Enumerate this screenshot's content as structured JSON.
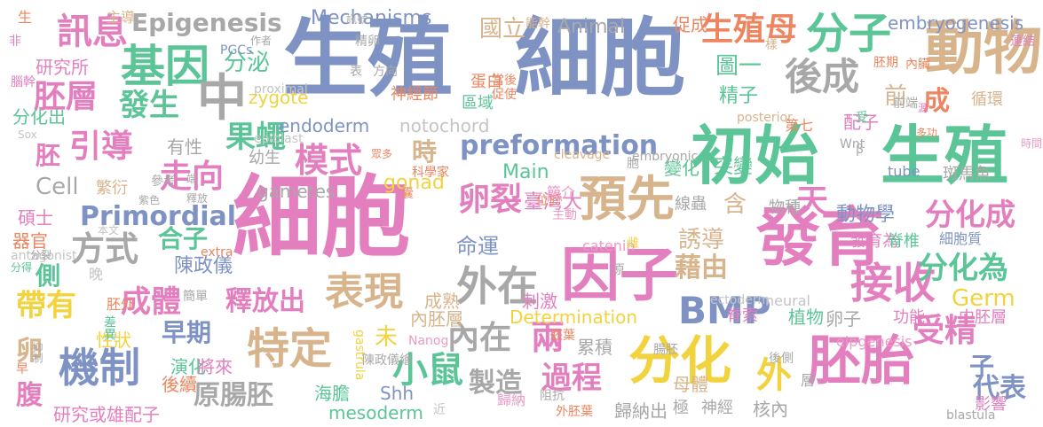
{
  "colors": {
    "blue": "#7e93c4",
    "pink": "#e37fbf",
    "green": "#5cc597",
    "orange": "#ed8660",
    "tan": "#d8b48c",
    "gray": "#a8a8a8",
    "yellow": "#f2d33e",
    "lgreen": "#9fcd4c",
    "palepink": "#ec9ac6",
    "palegray": "#c4c4c4"
  },
  "words": [
    {
      "text": "生殖",
      "color": "blue"
    },
    {
      "text": "細胞",
      "color": "blue"
    },
    {
      "text": "細胞",
      "color": "pink"
    },
    {
      "text": "初始",
      "color": "green"
    },
    {
      "text": "生殖",
      "color": "green"
    },
    {
      "text": "發育",
      "color": "pink"
    },
    {
      "text": "因子",
      "color": "pink"
    },
    {
      "text": "分化",
      "color": "yellow"
    },
    {
      "text": "胚胎",
      "color": "pink"
    },
    {
      "text": "動物",
      "color": "tan"
    },
    {
      "text": "分子",
      "color": "green"
    },
    {
      "text": "基因",
      "color": "green"
    },
    {
      "text": "預先",
      "color": "tan"
    },
    {
      "text": "外在",
      "color": "gray"
    },
    {
      "text": "接收",
      "color": "pink"
    },
    {
      "text": "BMP",
      "color": "blue"
    },
    {
      "text": "機制",
      "color": "blue"
    },
    {
      "text": "特定",
      "color": "tan"
    },
    {
      "text": "表現",
      "color": "tan"
    },
    {
      "text": "訊息",
      "color": "pink"
    },
    {
      "text": "胚層",
      "color": "pink"
    },
    {
      "text": "引導",
      "color": "pink"
    },
    {
      "text": "中",
      "color": "gray"
    },
    {
      "text": "後成",
      "color": "gray"
    },
    {
      "text": "生殖母",
      "color": "orange"
    },
    {
      "text": "Epigenesis",
      "color": "gray"
    },
    {
      "text": "Mechanisms",
      "color": "blue"
    },
    {
      "text": "preformation",
      "color": "blue"
    },
    {
      "text": "模式",
      "color": "pink"
    },
    {
      "text": "果蠅",
      "color": "green"
    },
    {
      "text": "走向",
      "color": "pink"
    },
    {
      "text": "卵裂",
      "color": "pink"
    },
    {
      "text": "天",
      "color": "pink"
    },
    {
      "text": "小鼠",
      "color": "green"
    },
    {
      "text": "原腸胚",
      "color": "gray"
    },
    {
      "text": "過程",
      "color": "pink"
    },
    {
      "text": "內在",
      "color": "gray"
    },
    {
      "text": "兩",
      "color": "pink"
    },
    {
      "text": "外",
      "color": "yellow"
    },
    {
      "text": "受精",
      "color": "pink"
    },
    {
      "text": "分化成",
      "color": "pink"
    },
    {
      "text": "分化為",
      "color": "green"
    },
    {
      "text": "藉由",
      "color": "tan"
    },
    {
      "text": "Germ",
      "color": "yellow"
    },
    {
      "text": "方式",
      "color": "gray"
    },
    {
      "text": "Primordial",
      "color": "blue"
    },
    {
      "text": "成體",
      "color": "pink"
    },
    {
      "text": "發生",
      "color": "green"
    },
    {
      "text": "帶有",
      "color": "yellow"
    },
    {
      "text": "腹",
      "color": "pink"
    },
    {
      "text": "卵",
      "color": "tan"
    },
    {
      "text": "胚",
      "color": "pink"
    },
    {
      "text": "側",
      "color": "green"
    },
    {
      "text": "早期",
      "color": "blue"
    },
    {
      "text": "釋放出",
      "color": "pink"
    },
    {
      "text": "製造",
      "color": "gray"
    },
    {
      "text": "代表",
      "color": "blue"
    },
    {
      "text": "子",
      "color": "blue"
    },
    {
      "text": "成",
      "color": "orange"
    },
    {
      "text": "前",
      "color": "tan"
    },
    {
      "text": "分泌",
      "color": "green"
    },
    {
      "text": "Cell",
      "color": "gray"
    },
    {
      "text": "合子",
      "color": "green"
    },
    {
      "text": "陳政儀",
      "color": "blue"
    },
    {
      "text": "命運",
      "color": "blue"
    },
    {
      "text": "誘導",
      "color": "tan"
    },
    {
      "text": "含",
      "color": "tan"
    },
    {
      "text": "時",
      "color": "tan"
    },
    {
      "text": "未",
      "color": "yellow"
    },
    {
      "text": "圖一",
      "color": "green"
    },
    {
      "text": "精子",
      "color": "green"
    },
    {
      "text": "突變",
      "color": "green"
    },
    {
      "text": "變化",
      "color": "green"
    },
    {
      "text": "國立",
      "color": "tan"
    },
    {
      "text": "臺灣大",
      "color": "pink"
    },
    {
      "text": "動物學",
      "color": "blue"
    },
    {
      "text": "gonad",
      "color": "yellow"
    },
    {
      "text": "Main",
      "color": "green"
    },
    {
      "text": "Animal",
      "color": "gray"
    },
    {
      "text": "zygote",
      "color": "yellow"
    },
    {
      "text": "gametes",
      "color": "gray"
    },
    {
      "text": "endoderm",
      "color": "blue"
    },
    {
      "text": "notochord",
      "color": "palegray"
    },
    {
      "text": "Determination",
      "color": "yellow"
    },
    {
      "text": "embryogenesis",
      "color": "blue"
    },
    {
      "text": "研究所",
      "color": "pink"
    },
    {
      "text": "分化出",
      "color": "green"
    },
    {
      "text": "有性",
      "color": "gray"
    },
    {
      "text": "幼生",
      "color": "gray"
    },
    {
      "text": "繁衍",
      "color": "tan"
    },
    {
      "text": "碩士",
      "color": "pink"
    },
    {
      "text": "器官",
      "color": "orange"
    },
    {
      "text": "性狀",
      "color": "yellow"
    },
    {
      "text": "演化",
      "color": "green"
    },
    {
      "text": "將來",
      "color": "pink"
    },
    {
      "text": "後續",
      "color": "orange"
    },
    {
      "text": "研究或雄配子",
      "color": "pink"
    },
    {
      "text": "mesoderm",
      "color": "green"
    },
    {
      "text": "海膽",
      "color": "green"
    },
    {
      "text": "Shh",
      "color": "blue"
    },
    {
      "text": "刺激",
      "color": "pink"
    },
    {
      "text": "成熟",
      "color": "tan"
    },
    {
      "text": "內胚層",
      "color": "tan"
    },
    {
      "text": "累積",
      "color": "gray"
    },
    {
      "text": "歸納出",
      "color": "gray"
    },
    {
      "text": "極",
      "color": "gray"
    },
    {
      "text": "神經",
      "color": "gray"
    },
    {
      "text": "核內",
      "color": "gray"
    },
    {
      "text": "母體",
      "color": "tan"
    },
    {
      "text": "卵子",
      "color": "gray"
    },
    {
      "text": "植物",
      "color": "green"
    },
    {
      "text": "脊索",
      "color": "pink"
    },
    {
      "text": "功能",
      "color": "pink"
    },
    {
      "text": "中胚層",
      "color": "pink"
    },
    {
      "text": "影響",
      "color": "pink"
    },
    {
      "text": "循環",
      "color": "tan"
    },
    {
      "text": "配子",
      "color": "pink"
    },
    {
      "text": "蛋白",
      "color": "orange"
    },
    {
      "text": "區域",
      "color": "green"
    },
    {
      "text": "神經節",
      "color": "orange"
    },
    {
      "text": "促成",
      "color": "orange"
    },
    {
      "text": "物種",
      "color": "gray"
    },
    {
      "text": "發育為",
      "color": "pink"
    },
    {
      "text": "脊椎",
      "color": "green"
    },
    {
      "text": "細胞質",
      "color": "blue"
    },
    {
      "text": "斑馬魚",
      "color": "gray"
    },
    {
      "text": "catenin",
      "color": "palepink"
    },
    {
      "text": "neural",
      "color": "palegray"
    },
    {
      "text": "blastula",
      "color": "gray"
    },
    {
      "text": "eipgenesis",
      "color": "palepink"
    },
    {
      "text": "tube",
      "color": "blue"
    },
    {
      "text": "proximal",
      "color": "palegray"
    },
    {
      "text": "epiblast",
      "color": "palegray"
    },
    {
      "text": "PGCs",
      "color": "blue"
    },
    {
      "text": "cleavage",
      "color": "tan"
    },
    {
      "text": "embryonic",
      "color": "gray"
    },
    {
      "text": "posterior",
      "color": "tan"
    },
    {
      "text": "ectoderm",
      "color": "palegray"
    },
    {
      "text": "Nanog",
      "color": "palepink"
    },
    {
      "text": "antagonist",
      "color": "palegray"
    },
    {
      "text": "extra",
      "color": "orange"
    },
    {
      "text": "Sox",
      "color": "palegray"
    },
    {
      "text": "Wnt",
      "color": "gray"
    },
    {
      "text": "β",
      "color": "gray"
    },
    {
      "text": "主導",
      "color": "tan"
    },
    {
      "text": "訊號",
      "color": "gray"
    },
    {
      "text": "生",
      "color": "orange"
    },
    {
      "text": "非",
      "color": "pink"
    },
    {
      "text": "腦幹",
      "color": "pink"
    },
    {
      "text": "精卵",
      "color": "gray"
    },
    {
      "text": "作者",
      "color": "gray"
    },
    {
      "text": "方向",
      "color": "gray"
    },
    {
      "text": "表",
      "color": "gray"
    },
    {
      "text": "當後",
      "color": "orange"
    },
    {
      "text": "促使",
      "color": "orange"
    },
    {
      "text": "能幹",
      "color": "tan"
    },
    {
      "text": "樣",
      "color": "tan"
    },
    {
      "text": "連結",
      "color": "pink"
    },
    {
      "text": "胚期",
      "color": "orange"
    },
    {
      "text": "內臟",
      "color": "orange"
    },
    {
      "text": "前端",
      "color": "gray"
    },
    {
      "text": "源",
      "color": "pink"
    },
    {
      "text": "受",
      "color": "green"
    },
    {
      "text": "第七",
      "color": "orange"
    },
    {
      "text": "多功",
      "color": "orange"
    },
    {
      "text": "時間",
      "color": "palepink"
    },
    {
      "text": "眾多",
      "color": "orange"
    },
    {
      "text": "科學家",
      "color": "orange"
    },
    {
      "text": "囊",
      "color": "orange"
    },
    {
      "text": "位於",
      "color": "orange"
    },
    {
      "text": "胞",
      "color": "gray"
    },
    {
      "text": "簡介",
      "color": "palepink"
    },
    {
      "text": "主動",
      "color": "palepink"
    },
    {
      "text": "雌",
      "color": "yellow"
    },
    {
      "text": "線蟲",
      "color": "gray"
    },
    {
      "text": "參考",
      "color": "gray"
    },
    {
      "text": "紫色",
      "color": "gray"
    },
    {
      "text": "端",
      "color": "gray"
    },
    {
      "text": "釋放",
      "color": "gray"
    },
    {
      "text": "本文",
      "color": "palegray"
    },
    {
      "text": "分裂",
      "color": "gray"
    },
    {
      "text": "分得",
      "color": "green"
    },
    {
      "text": "晚",
      "color": "palegray"
    },
    {
      "text": "簡單",
      "color": "gray"
    },
    {
      "text": "胚外",
      "color": "orange"
    },
    {
      "text": "差異",
      "color": "green"
    },
    {
      "text": "抑制",
      "color": "gray"
    },
    {
      "text": "早",
      "color": "orange"
    },
    {
      "text": "陳政儀繪",
      "color": "gray"
    },
    {
      "text": "gastrula",
      "color": "yellow"
    },
    {
      "text": "近",
      "color": "palegray"
    },
    {
      "text": "歸納",
      "color": "palepink"
    },
    {
      "text": "阻抗",
      "color": "gray"
    },
    {
      "text": "外胚葉",
      "color": "orange"
    },
    {
      "text": "腸胚",
      "color": "gray"
    },
    {
      "text": "胚葉",
      "color": "orange"
    },
    {
      "text": "原",
      "color": "gray"
    },
    {
      "text": "後側",
      "color": "gray"
    },
    {
      "text": "層",
      "color": "gray"
    }
  ]
}
